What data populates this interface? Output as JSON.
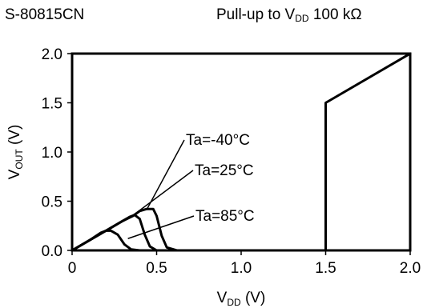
{
  "header": {
    "product": "S-80815CN",
    "condition_prefix": "Pull-up to V",
    "condition_sub": "DD",
    "condition_value": " 100 kΩ"
  },
  "chart_data": {
    "type": "line",
    "xlabel": {
      "main": "V",
      "sub": "DD",
      "unit": " (V)"
    },
    "ylabel": {
      "main": "V",
      "sub": "OUT",
      "unit": " (V)"
    },
    "xlim": [
      0,
      2.0
    ],
    "ylim": [
      0,
      2.0
    ],
    "x_ticks": [
      {
        "value": 0,
        "label": "0"
      },
      {
        "value": 0.5,
        "label": "0.5"
      },
      {
        "value": 1.0,
        "label": "1.0"
      },
      {
        "value": 1.5,
        "label": "1.5"
      },
      {
        "value": 2.0,
        "label": "2.0"
      }
    ],
    "y_ticks": [
      {
        "value": 0,
        "label": "0.0"
      },
      {
        "value": 0.5,
        "label": "0.5"
      },
      {
        "value": 1.0,
        "label": "1.0"
      },
      {
        "value": 1.5,
        "label": "1.5"
      },
      {
        "value": 2.0,
        "label": "2.0"
      }
    ],
    "grid": false,
    "series": [
      {
        "name": "Ta=-40°C",
        "x": [
          0,
          0.1,
          0.2,
          0.3,
          0.36,
          0.4,
          0.44,
          0.48,
          0.5,
          0.53,
          0.56,
          0.62,
          0.7
        ],
        "y": [
          0,
          0.1,
          0.2,
          0.3,
          0.35,
          0.4,
          0.42,
          0.42,
          0.35,
          0.15,
          0.03,
          0.0,
          0.0
        ]
      },
      {
        "name": "Ta=25°C",
        "x": [
          0,
          0.1,
          0.2,
          0.3,
          0.34,
          0.37,
          0.4,
          0.43,
          0.46,
          0.5,
          0.56,
          0.65
        ],
        "y": [
          0,
          0.1,
          0.2,
          0.3,
          0.34,
          0.36,
          0.32,
          0.16,
          0.04,
          0.0,
          0.0,
          0.0
        ]
      },
      {
        "name": "Ta=85°C",
        "x": [
          0,
          0.1,
          0.17,
          0.2,
          0.23,
          0.27,
          0.31,
          0.35,
          0.4,
          0.5
        ],
        "y": [
          0,
          0.1,
          0.18,
          0.2,
          0.2,
          0.16,
          0.06,
          0.01,
          0.0,
          0.0
        ]
      },
      {
        "name": "",
        "x": [
          1.5,
          1.5,
          2.0
        ],
        "y": [
          0,
          1.5,
          2.0
        ]
      }
    ],
    "annotations": [
      {
        "text": "Ta=-40°C",
        "series": 0,
        "at": [
          0.44,
          0.41
        ]
      },
      {
        "text": "Ta=25°C",
        "series": 1,
        "at": [
          0.34,
          0.33
        ]
      },
      {
        "text": "Ta=85°C",
        "series": 2,
        "at": [
          0.33,
          0.12
        ]
      }
    ]
  }
}
